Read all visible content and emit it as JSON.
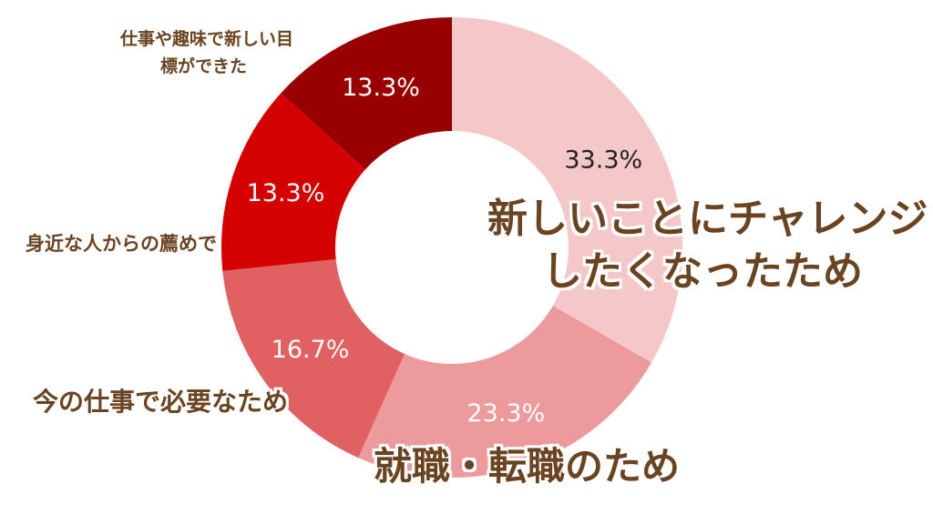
{
  "chart_data": {
    "type": "pie",
    "variant": "donut",
    "slices": [
      {
        "label": [
          "新しいことにチャレンジ",
          "したくなったため"
        ],
        "value": 33.3,
        "value_label": "33.3%",
        "color": "#f4c7c9",
        "value_text_color": "#222222"
      },
      {
        "label": [
          "就職・転職のため"
        ],
        "value": 23.3,
        "value_label": "23.3%",
        "color": "#ec9a9c",
        "value_text_color": "#ffffff"
      },
      {
        "label": [
          "今の仕事で必要なため"
        ],
        "value": 16.7,
        "value_label": "16.7%",
        "color": "#e16163",
        "value_text_color": "#ffffff"
      },
      {
        "label": [
          "身近な人からの薦めで"
        ],
        "value": 13.3,
        "value_label": "13.3%",
        "color": "#d50000",
        "value_text_color": "#ffffff"
      },
      {
        "label": [
          "仕事や趣味で新しい目",
          "標ができた"
        ],
        "value": 13.3,
        "value_label": "13.3%",
        "color": "#990000",
        "value_text_color": "#ffffff"
      }
    ],
    "start_angle_deg": 0,
    "direction": "clockwise",
    "label_color": "#6a4320"
  }
}
